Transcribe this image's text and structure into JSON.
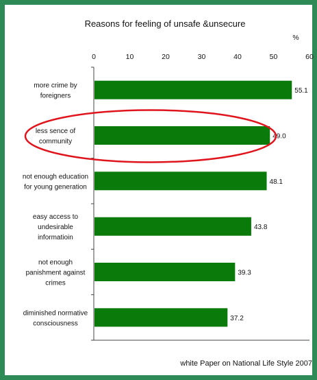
{
  "colors": {
    "frame": "#2e8b57",
    "bar": "#0a7a0a",
    "highlight_ellipse": "#e0141c"
  },
  "chart_data": {
    "type": "bar",
    "orientation": "horizontal",
    "title": "Reasons for feeling of unsafe &unsecure",
    "unit": "%",
    "xlim": [
      0,
      60
    ],
    "xticks": [
      "0",
      "10",
      "20",
      "30",
      "40",
      "50",
      "60"
    ],
    "categories": [
      [
        "more crime by",
        "foreigners"
      ],
      [
        "less sence of",
        "community"
      ],
      [
        "not enough education",
        "for young generation"
      ],
      [
        "easy access to",
        "undesirable",
        "informatioin"
      ],
      [
        "not enough",
        "panishment against",
        "crimes"
      ],
      [
        "diminished normative",
        "consciousness"
      ]
    ],
    "values": [
      55.1,
      49.0,
      48.1,
      43.8,
      39.3,
      37.2
    ],
    "value_labels": [
      "55.1",
      "49.0",
      "48.1",
      "43.8",
      "39.3",
      "37.2"
    ],
    "highlighted_index": 1,
    "source": "white Paper on National Life Style 2007",
    "grid": false
  }
}
